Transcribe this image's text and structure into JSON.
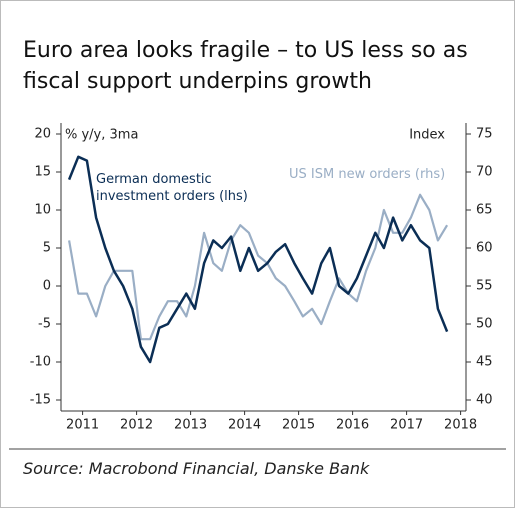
{
  "chart_data": {
    "type": "line",
    "title": "Euro area looks fragile – to US less so as fiscal support underpins growth",
    "y_label": "% y/y, 3ma",
    "y2_label": "Index",
    "source": "Source: Macrobond Financial, Danske Bank",
    "x": [
      2011.25,
      2011.42,
      2011.58,
      2011.75,
      2011.92,
      2012.08,
      2012.25,
      2012.42,
      2012.58,
      2012.75,
      2012.92,
      2013.08,
      2013.25,
      2013.42,
      2013.58,
      2013.75,
      2013.92,
      2014.08,
      2014.25,
      2014.42,
      2014.58,
      2014.75,
      2014.92,
      2015.08,
      2015.25,
      2015.42,
      2015.58,
      2015.75,
      2015.92,
      2016.08,
      2016.25,
      2016.42,
      2016.58,
      2016.75,
      2016.92,
      2017.08,
      2017.25,
      2017.42,
      2017.58,
      2017.75,
      2017.92,
      2018.08,
      2018.25
    ],
    "series": [
      {
        "name": "German domestic investment orders (lhs)",
        "color": "#0b2e55",
        "axis": "y",
        "values": [
          14,
          17,
          16.5,
          9,
          5,
          2,
          0,
          -3,
          -8,
          -10,
          -5.5,
          -5,
          -3,
          -1,
          -3,
          3,
          6,
          5,
          6.5,
          2,
          5,
          2,
          3,
          4.5,
          5.5,
          3,
          1,
          -1,
          3,
          5,
          0,
          -1,
          1,
          4,
          7,
          5,
          9,
          6,
          8,
          6,
          5,
          -3,
          -6
        ]
      },
      {
        "name": "US ISM new orders (rhs)",
        "color": "#9aaec5",
        "axis": "y2",
        "values": [
          61,
          54,
          54,
          51,
          55,
          57,
          57,
          57,
          48,
          48,
          51,
          53,
          53,
          51,
          55,
          62,
          58,
          57,
          61,
          63,
          62,
          59,
          58,
          56,
          55,
          53,
          51,
          52,
          50,
          53,
          56,
          54,
          53,
          57,
          60,
          65,
          62,
          62,
          64,
          67,
          65,
          61,
          63
        ]
      }
    ],
    "xlim": [
      2011.1,
      2018.6
    ],
    "xticks": [
      {
        "value": 2011.5,
        "label": "2011"
      },
      {
        "value": 2012.5,
        "label": "2012"
      },
      {
        "value": 2013.5,
        "label": "2013"
      },
      {
        "value": 2014.5,
        "label": "2014"
      },
      {
        "value": 2015.5,
        "label": "2015"
      },
      {
        "value": 2016.5,
        "label": "2016"
      },
      {
        "value": 2017.5,
        "label": "2017"
      },
      {
        "value": 2018.5,
        "label": "2018"
      }
    ],
    "ylim": [
      -15,
      20
    ],
    "yticks": [
      20,
      15,
      10,
      5,
      0,
      -5,
      -10,
      -15
    ],
    "y2lim": [
      40,
      75
    ],
    "y2ticks": [
      75,
      70,
      65,
      60,
      55,
      50,
      45,
      40
    ]
  }
}
